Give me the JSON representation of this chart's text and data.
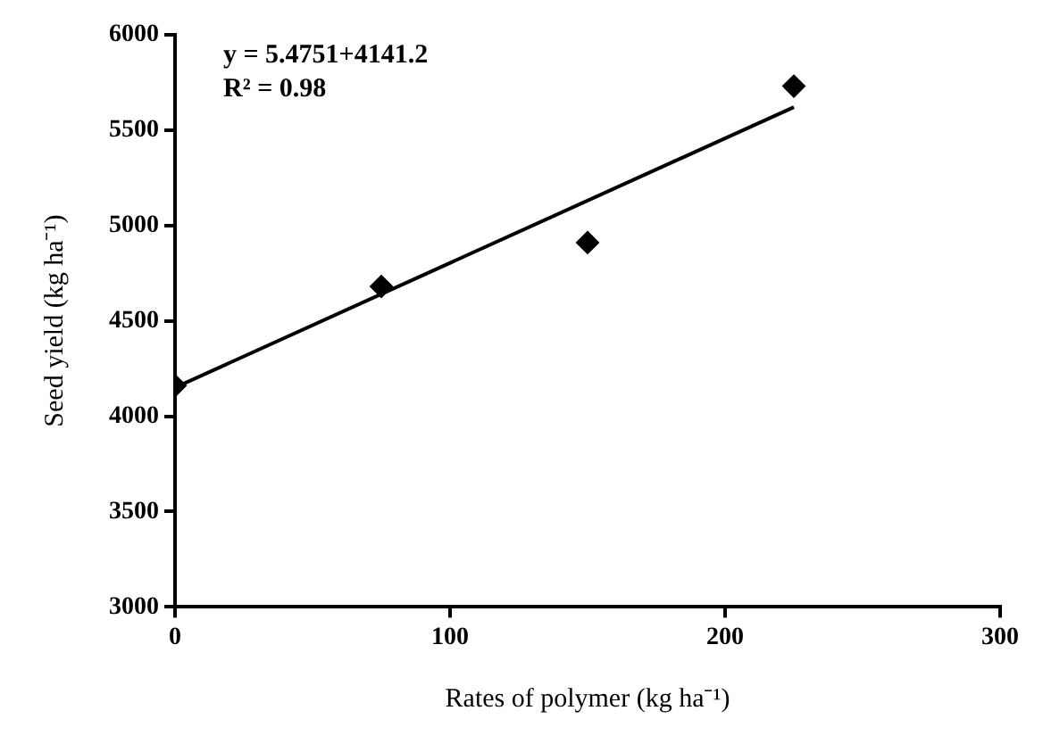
{
  "chart_data": {
    "type": "scatter",
    "xlabel": "Rates of polymer (kg ha⁻¹)",
    "ylabel": "Seed yield (kg ha⁻¹)",
    "annotations": [
      "y = 5.4751+4141.2",
      "R² = 0.98"
    ],
    "series": [
      {
        "type": "scatter",
        "color": "#000000",
        "x": [
          0,
          75,
          150,
          225
        ],
        "values": [
          4160,
          4680,
          4910,
          5730
        ],
        "marker": "diamond"
      },
      {
        "type": "line",
        "color": "#000000",
        "x": [
          0,
          225
        ],
        "values": [
          4150,
          5620
        ],
        "marker": "none",
        "line_style": "solid"
      }
    ],
    "xlim": [
      0,
      300
    ],
    "xticks": [
      0,
      100,
      200,
      300
    ],
    "ylim": [
      3000,
      6000
    ],
    "yticks": [
      3000,
      3500,
      4000,
      4500,
      5000,
      5500,
      6000
    ],
    "grid": false,
    "legend": false
  }
}
